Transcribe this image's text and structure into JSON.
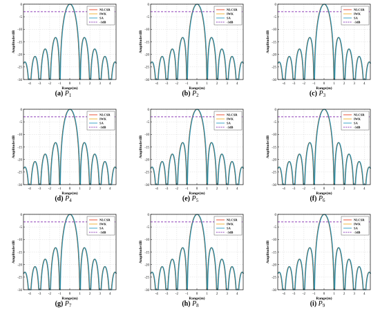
{
  "colors": {
    "nlcsr": "#e8533a",
    "iwk": "#f2b53d",
    "sa": "#3fa4c8",
    "minus3db": "#8e3fb8",
    "grid": "#d9d9d9",
    "main_curve": "#28635a"
  },
  "panels": [
    {
      "letter": "(a)",
      "name": "P",
      "sub": "1",
      "xlim": [
        -4.6,
        4.6
      ],
      "ticks": [
        -4,
        -3,
        -2,
        -1,
        0,
        1,
        2,
        3,
        4
      ]
    },
    {
      "letter": "(b)",
      "name": "P",
      "sub": "2",
      "xlim": [
        -4.6,
        4.6
      ],
      "ticks": [
        -4,
        -3,
        -2,
        -1,
        0,
        1,
        2,
        3,
        4
      ]
    },
    {
      "letter": "(c)",
      "name": "P",
      "sub": "3",
      "xlim": [
        -4.6,
        4.6
      ],
      "ticks": [
        -4,
        -3,
        -2,
        -1,
        0,
        1,
        2,
        3,
        4
      ]
    },
    {
      "letter": "(d)",
      "name": "P",
      "sub": "4",
      "xlim": [
        -4.6,
        4.6
      ],
      "ticks": [
        -4,
        -3,
        -2,
        -1,
        0,
        1,
        2,
        3,
        4
      ]
    },
    {
      "letter": "(e)",
      "name": "P",
      "sub": "5",
      "xlim": [
        -4.6,
        4.6
      ],
      "ticks": [
        -4,
        -3,
        -2,
        -1,
        0,
        1,
        2,
        3,
        4
      ]
    },
    {
      "letter": "(f)",
      "name": "P",
      "sub": "6",
      "xlim": [
        -4.6,
        4.6
      ],
      "ticks": [
        -4,
        -3,
        -2,
        -1,
        0,
        1,
        2,
        3,
        4
      ]
    },
    {
      "letter": "(g)",
      "name": "P",
      "sub": "7",
      "xlim": [
        -4.6,
        4.6
      ],
      "ticks": [
        -4,
        -3,
        -2,
        -1,
        0,
        1,
        2,
        3,
        4
      ]
    },
    {
      "letter": "(h)",
      "name": "P",
      "sub": "8",
      "xlim": [
        -4.6,
        4.6
      ],
      "ticks": [
        -4,
        -3,
        -2,
        -1,
        0,
        1,
        2,
        3,
        4
      ]
    },
    {
      "letter": "(i)",
      "name": "P",
      "sub": "9",
      "xlim": [
        -4.6,
        4.6
      ],
      "ticks": [
        -4,
        -3,
        -2,
        -1,
        0,
        1,
        2,
        3,
        4
      ]
    }
  ],
  "chart_data": {
    "type": "line",
    "xlabel": "Range(m)",
    "ylabel": "Amplitude/dB",
    "ylim": [
      -30,
      0
    ],
    "yticks": [
      0,
      -5,
      -10,
      -15,
      -20,
      -25,
      -30
    ],
    "grid": true,
    "legend_placement": "top-right",
    "mainlobe_null_m": 1.0,
    "sidelobe_peaks_db": [
      -13.3,
      -17.8,
      -20.8,
      -23.0
    ],
    "series": [
      {
        "name": "NLCSR",
        "style": "solid"
      },
      {
        "name": "IWK",
        "style": "solid"
      },
      {
        "name": "SA",
        "style": "solid"
      },
      {
        "name": "-3dB",
        "style": "dashed",
        "value": -3
      }
    ]
  }
}
